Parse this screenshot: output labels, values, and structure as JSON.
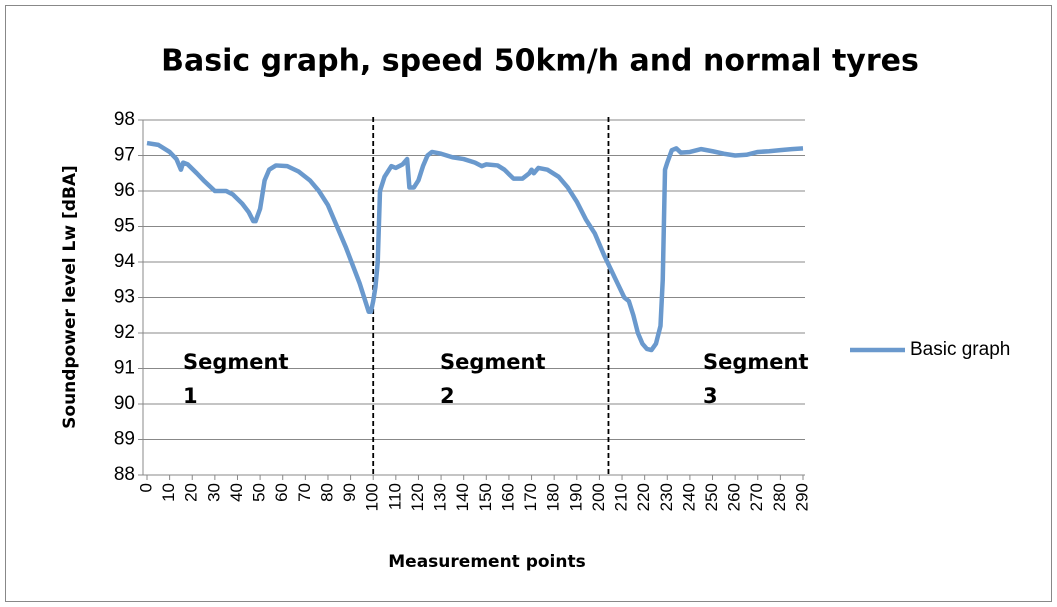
{
  "chart_data": {
    "type": "line",
    "title": "Basic graph, speed 50km/h and normal tyres",
    "x_label": "Measurement points",
    "y_label": "Soundpower level Lw [dBA]",
    "xlim": [
      0,
      290
    ],
    "xticks": [
      0,
      10,
      20,
      30,
      40,
      50,
      60,
      70,
      80,
      90,
      100,
      110,
      120,
      130,
      140,
      150,
      160,
      170,
      180,
      190,
      200,
      210,
      220,
      230,
      240,
      250,
      260,
      270,
      280,
      290
    ],
    "ylim": [
      88,
      98
    ],
    "yticks": [
      88,
      89,
      90,
      91,
      92,
      93,
      94,
      95,
      96,
      97,
      98
    ],
    "grid": true,
    "legend": "right",
    "reference_lines": [
      100,
      204
    ],
    "annotations": [
      "Segment 1",
      "Segment 2",
      "Segment 3"
    ],
    "series": [
      {
        "name": "Basic graph",
        "color": "#6a99cd",
        "x": [
          0,
          5,
          10,
          13,
          15,
          16,
          18,
          22,
          25,
          30,
          35,
          38,
          42,
          45,
          47,
          48,
          50,
          52,
          54,
          57,
          62,
          67,
          72,
          76,
          80,
          84,
          88,
          91,
          94,
          96,
          98,
          99,
          100,
          101,
          102,
          103,
          105,
          108,
          110,
          113,
          115,
          116,
          118,
          120,
          122,
          124,
          126,
          130,
          135,
          140,
          145,
          148,
          150,
          155,
          158,
          162,
          166,
          169,
          170,
          171,
          173,
          177,
          182,
          186,
          190,
          194,
          198,
          202,
          205,
          208,
          211,
          213,
          215,
          217,
          219,
          221,
          223,
          225,
          227,
          228,
          229,
          230,
          232,
          234,
          236,
          240,
          245,
          250,
          255,
          260,
          265,
          270,
          275,
          280,
          285,
          290
        ],
        "values": [
          97.35,
          97.3,
          97.1,
          96.9,
          96.6,
          96.8,
          96.75,
          96.5,
          96.3,
          96.0,
          96.0,
          95.9,
          95.65,
          95.4,
          95.15,
          95.15,
          95.5,
          96.3,
          96.6,
          96.72,
          96.7,
          96.55,
          96.3,
          96.0,
          95.6,
          95.0,
          94.4,
          93.9,
          93.4,
          93.0,
          92.6,
          92.6,
          92.9,
          93.3,
          94.0,
          96.0,
          96.4,
          96.7,
          96.65,
          96.75,
          96.9,
          96.1,
          96.1,
          96.3,
          96.7,
          97.0,
          97.1,
          97.05,
          96.95,
          96.9,
          96.8,
          96.7,
          96.75,
          96.72,
          96.6,
          96.35,
          96.35,
          96.5,
          96.6,
          96.5,
          96.65,
          96.6,
          96.4,
          96.1,
          95.7,
          95.2,
          94.8,
          94.2,
          93.8,
          93.4,
          93.0,
          92.9,
          92.5,
          92.0,
          91.7,
          91.55,
          91.52,
          91.7,
          92.2,
          93.5,
          96.6,
          96.8,
          97.15,
          97.2,
          97.08,
          97.1,
          97.18,
          97.12,
          97.05,
          97.0,
          97.02,
          97.1,
          97.12,
          97.15,
          97.18,
          97.2
        ]
      }
    ]
  }
}
